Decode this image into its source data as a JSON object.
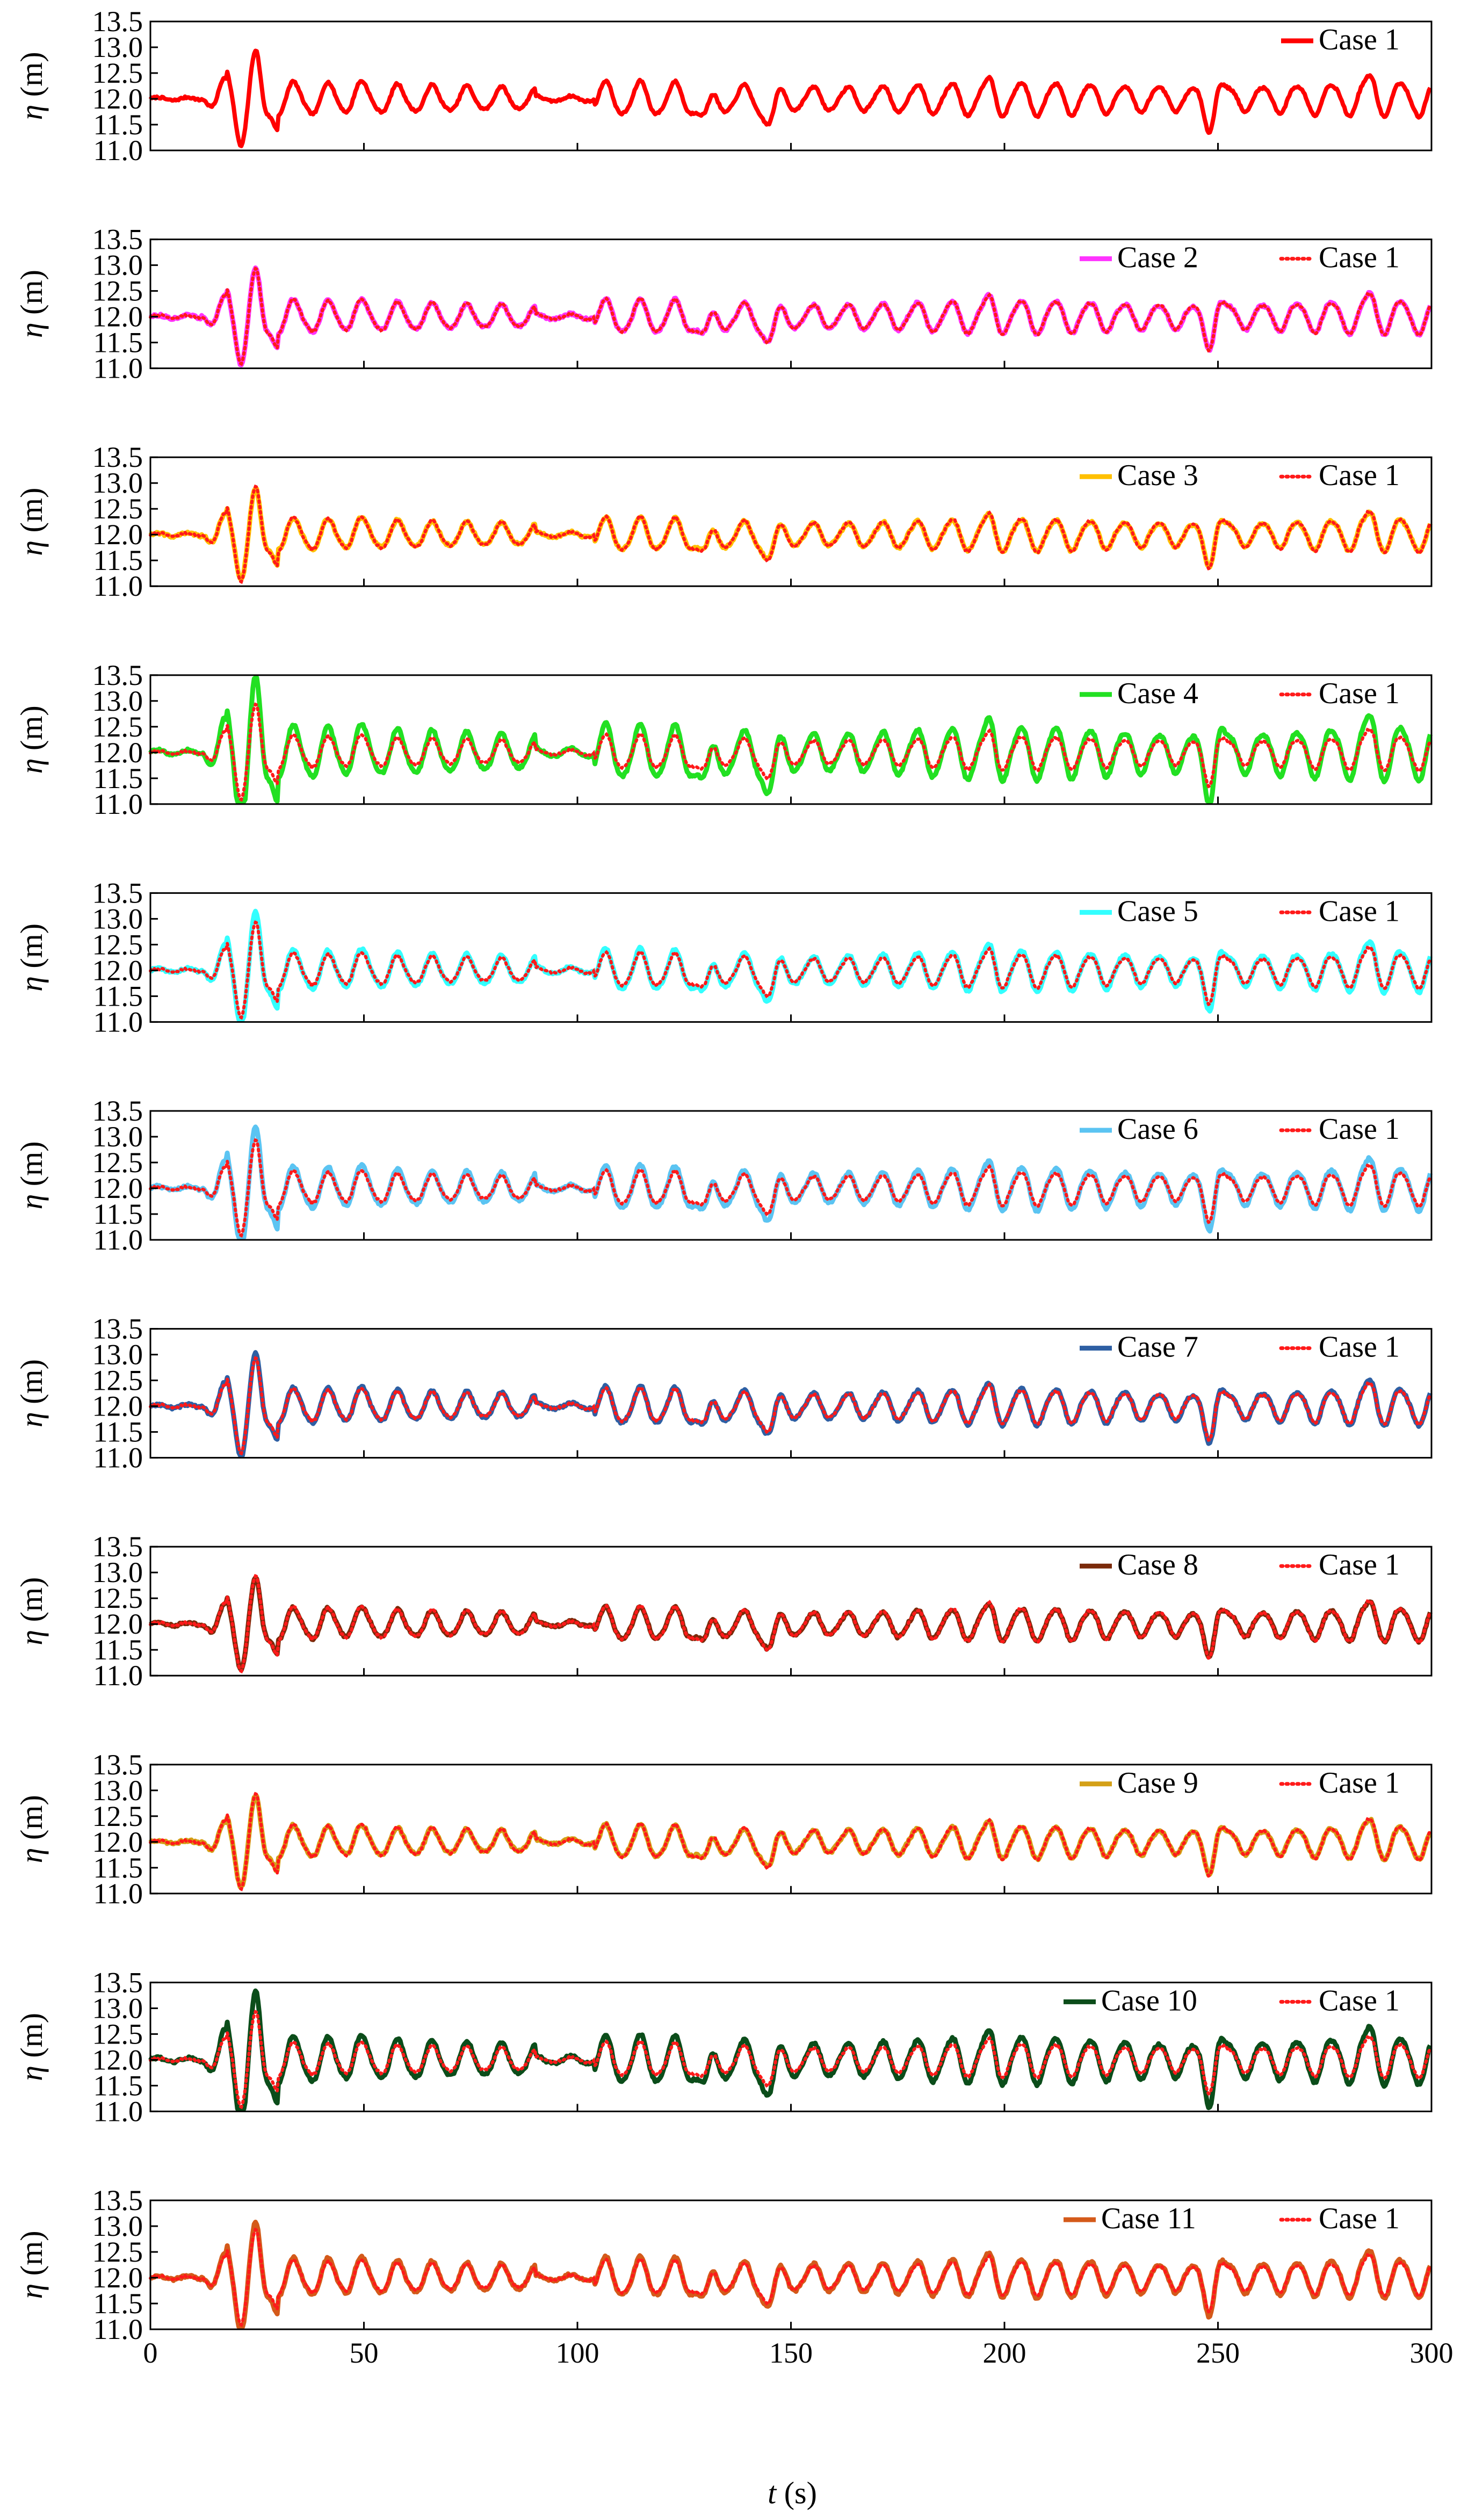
{
  "figure": {
    "xlabel_var": "t",
    "xlabel_unit": " (s)",
    "ylabel_var": "η",
    "ylabel_unit": " (m)"
  },
  "chart_data": {
    "type": "line",
    "layout": "11 vertically stacked panels sharing the x axis (x tick labels on bottom panel only)",
    "xlim": [
      0,
      300
    ],
    "ylim": [
      11.0,
      13.5
    ],
    "xticks": [
      0,
      50,
      100,
      150,
      200,
      250,
      300
    ],
    "xtick_labels": [
      "0",
      "50",
      "100",
      "150",
      "200",
      "250",
      "300"
    ],
    "yticks": [
      11.0,
      11.5,
      12.0,
      12.5,
      13.0,
      13.5
    ],
    "ytick_labels": [
      "11.0",
      "11.5",
      "12.0",
      "12.5",
      "13.0",
      "13.5"
    ],
    "grid": false,
    "legend_position": "top-right",
    "xlabel": "t (s)",
    "ylabel": "η (m)",
    "baseline_water_level": 12.0,
    "reference": {
      "name": "Case 1",
      "color": "#ff1a1a",
      "style": "dotted (in panels 2–11), solid thick (panel 1)",
      "sampled_values": {
        "t": [
          0,
          10,
          15,
          18,
          20,
          22,
          24,
          26,
          28,
          30,
          35,
          40,
          45,
          50,
          60,
          70,
          80,
          90,
          100,
          105,
          110,
          120,
          130,
          140,
          148,
          150,
          160,
          170,
          180,
          190,
          197,
          200,
          210,
          220,
          230,
          240,
          248,
          250,
          260,
          270,
          280,
          286,
          290,
          300
        ],
        "eta": [
          12.0,
          12.05,
          12.5,
          11.9,
          11.2,
          12.1,
          12.75,
          11.2,
          12.4,
          11.8,
          12.2,
          11.7,
          12.3,
          11.6,
          12.2,
          11.7,
          12.2,
          12.0,
          12.0,
          11.8,
          12.2,
          11.7,
          11.3,
          12.3,
          11.3,
          12.3,
          11.7,
          12.2,
          11.8,
          12.1,
          12.2,
          11.6,
          12.1,
          11.7,
          12.2,
          11.8,
          11.3,
          12.3,
          11.7,
          12.2,
          11.7,
          12.3,
          11.9,
          12.0
        ]
      }
    },
    "series": [
      {
        "name": "Case 1",
        "color": "#ff0000",
        "approx_max": 12.78,
        "approx_min": 11.18
      },
      {
        "name": "Case 2",
        "color": "#ff33ff",
        "approx_max": 12.78,
        "approx_min": 11.2
      },
      {
        "name": "Case 3",
        "color": "#ffc000",
        "approx_max": 12.75,
        "approx_min": 11.2
      },
      {
        "name": "Case 4",
        "color": "#22e022",
        "approx_max": 13.25,
        "approx_min": 11.2
      },
      {
        "name": "Case 5",
        "color": "#33ffff",
        "approx_max": 12.95,
        "approx_min": 11.2
      },
      {
        "name": "Case 6",
        "color": "#5bc4f2",
        "approx_max": 13.0,
        "approx_min": 11.2
      },
      {
        "name": "Case 7",
        "color": "#2e5fa3",
        "approx_max": 12.85,
        "approx_min": 11.1
      },
      {
        "name": "Case 8",
        "color": "#7a2a0a",
        "approx_max": 12.75,
        "approx_min": 11.15
      },
      {
        "name": "Case 9",
        "color": "#d4a017",
        "approx_max": 12.75,
        "approx_min": 11.2
      },
      {
        "name": "Case 10",
        "color": "#0b4d1a",
        "approx_max": 13.1,
        "approx_min": 11.2
      },
      {
        "name": "Case 11",
        "color": "#d45a1a",
        "approx_max": 12.9,
        "approx_min": 11.1
      }
    ]
  }
}
